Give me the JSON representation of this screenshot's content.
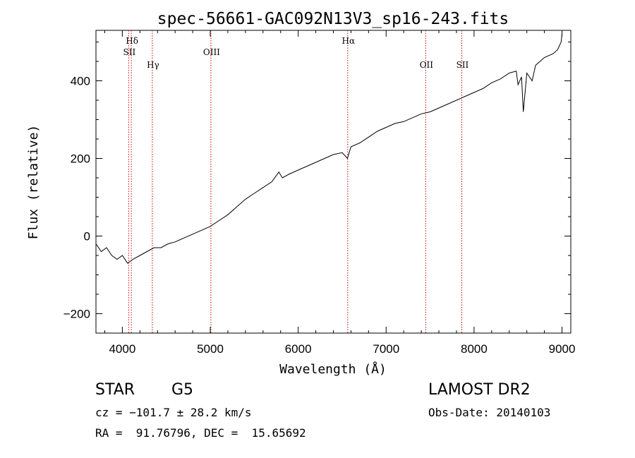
{
  "chart_data": {
    "type": "line",
    "title": "spec-56661-GAC092N13V3_sp16-243.fits",
    "xlabel": "Wavelength (Å)",
    "ylabel": "Flux (relative)",
    "xlim": [
      3700,
      9100
    ],
    "ylim": [
      -250,
      530
    ],
    "x_ticks": [
      4000,
      5000,
      6000,
      7000,
      8000,
      9000
    ],
    "y_ticks": [
      -200,
      0,
      200,
      400
    ],
    "grid": false,
    "line_color": "#000000",
    "marker_color": "#cc0000",
    "spectrum": {
      "name": "flux",
      "x": [
        3700,
        3760,
        3820,
        3880,
        3940,
        4000,
        4060,
        4120,
        4200,
        4280,
        4360,
        4440,
        4520,
        4600,
        4700,
        4800,
        4900,
        5000,
        5100,
        5200,
        5300,
        5400,
        5500,
        5600,
        5700,
        5780,
        5820,
        5900,
        6000,
        6100,
        6200,
        6300,
        6400,
        6500,
        6560,
        6600,
        6700,
        6800,
        6900,
        7000,
        7100,
        7200,
        7300,
        7400,
        7500,
        7600,
        7700,
        7800,
        7850,
        7900,
        8000,
        8100,
        8200,
        8300,
        8400,
        8480,
        8500,
        8540,
        8560,
        8600,
        8660,
        8700,
        8800,
        8900,
        8950,
        8990,
        9000
      ],
      "y": [
        -20,
        -40,
        -30,
        -50,
        -60,
        -50,
        -70,
        -60,
        -50,
        -40,
        -30,
        -30,
        -20,
        -15,
        -5,
        5,
        15,
        25,
        40,
        55,
        75,
        95,
        110,
        125,
        140,
        165,
        150,
        160,
        170,
        180,
        190,
        200,
        210,
        215,
        200,
        230,
        240,
        255,
        270,
        280,
        290,
        295,
        305,
        315,
        320,
        330,
        340,
        350,
        355,
        360,
        370,
        380,
        395,
        405,
        420,
        425,
        390,
        410,
        320,
        420,
        400,
        440,
        460,
        470,
        480,
        500,
        520
      ]
    },
    "line_markers": [
      {
        "label": "Hδ",
        "x": 4102
      },
      {
        "label": "SII",
        "x": 4072
      },
      {
        "label": "Hγ",
        "x": 4341
      },
      {
        "label": "OIII",
        "x": 5007
      },
      {
        "label": "Hα",
        "x": 6563
      },
      {
        "label": "OII",
        "x": 7450
      },
      {
        "label": "SII",
        "x": 7860
      }
    ]
  },
  "info": {
    "class_label": "STAR",
    "subclass_label": "G5",
    "survey": "LAMOST DR2",
    "cz": "cz = −101.7 ± 28.2 km/s",
    "obs_date": "Obs-Date: 20140103",
    "coords": "RA =  91.76796, DEC =  15.65692"
  }
}
